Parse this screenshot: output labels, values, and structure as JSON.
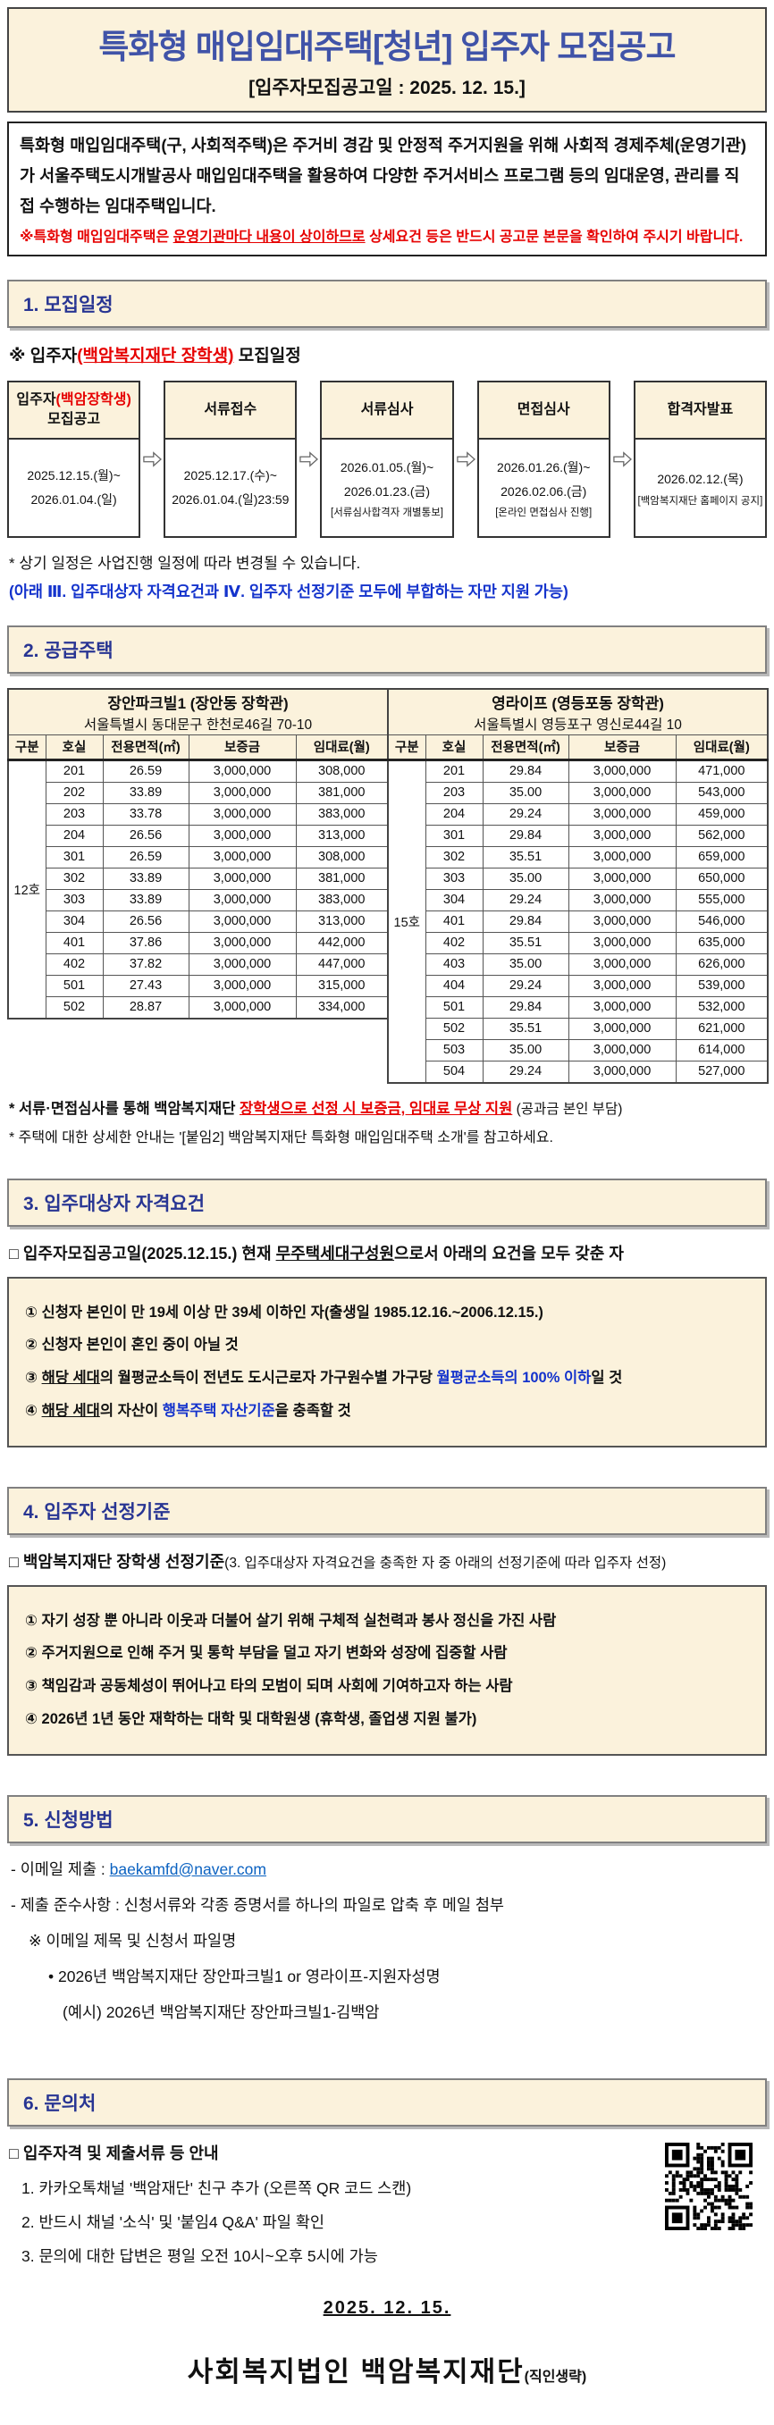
{
  "colors": {
    "cream": "#fbf2dc",
    "navy": "#283593",
    "title_blue": "#4053a8",
    "red": "#e60000",
    "accent_blue": "#1433cc",
    "link": "#0b62c1"
  },
  "header": {
    "title": "특화형 매입임대주택[청년] 입주자 모집공고",
    "subtitle": "[입주자모집공고일 : 2025. 12. 15.]"
  },
  "intro": {
    "body": "특화형 매입임대주택(구, 사회적주택)은 주거비 경감 및 안정적 주거지원을 위해 사회적 경제주체(운영기관)가 서울주택도시개발공사 매입임대주택을 활용하여 다양한 주거서비스 프로그램 등의 임대운영, 관리를 직접 수행하는 임대주택입니다.",
    "warn_segs": [
      {
        "t": "※특화형 매입임대주택은 ",
        "c": "red"
      },
      {
        "t": "운영기관마다 내용이 상이하므로",
        "c": "red",
        "u": true
      },
      {
        "t": " 상세요건 등은 반드시 공고문 본문을 확인하여 주시기 바랍니다.",
        "c": "red"
      }
    ]
  },
  "sections": {
    "s1": "1. 모집일정",
    "s2": "2. 공급주택",
    "s3": "3. 입주대상자 자격요건",
    "s4": "4. 입주자 선정기준",
    "s5": "5. 신청방법",
    "s6": "6. 문의처"
  },
  "schedule": {
    "note_segs": [
      {
        "t": "※ 입주자"
      },
      {
        "t": "(백암복지재단 장학생)",
        "c": "red",
        "u": true
      },
      {
        "t": " 모집일정"
      }
    ],
    "steps": [
      {
        "title_segs": [
          {
            "t": "입주자"
          },
          {
            "t": "(백암장학생)",
            "c": "red"
          }
        ],
        "title2": "모집공고",
        "dates": [
          "2025.12.15.(월)~",
          "2026.01.04.(일)"
        ],
        "extra": ""
      },
      {
        "title_segs": [
          {
            "t": "서류접수"
          }
        ],
        "title2": "",
        "dates": [
          "2025.12.17.(수)~",
          "2026.01.04.(일)23:59"
        ],
        "extra": ""
      },
      {
        "title_segs": [
          {
            "t": "서류심사"
          }
        ],
        "title2": "",
        "dates": [
          "2026.01.05.(월)~",
          "2026.01.23.(금)"
        ],
        "extra": "[서류심사합격자 개별통보]"
      },
      {
        "title_segs": [
          {
            "t": "면접심사"
          }
        ],
        "title2": "",
        "dates": [
          "2026.01.26.(월)~",
          "2026.02.06.(금)"
        ],
        "extra": "[온라인 면접심사 진행]"
      },
      {
        "title_segs": [
          {
            "t": "합격자발표"
          }
        ],
        "title2": "",
        "dates": [
          "2026.02.12.(목)"
        ],
        "extra": "[백암복지재단 홈페이지 공지]"
      }
    ],
    "footnote1": "* 상기 일정은 사업진행 일정에 따라 변경될 수 있습니다.",
    "footnote2": "(아래 Ⅲ. 입주대상자 자격요건과 Ⅳ. 입주자 선정기준 모두에 부합하는 자만 지원 가능)"
  },
  "housing": {
    "buildings": [
      {
        "name": "장안파크빌1 (장안동 장학관)",
        "address": "서울특별시 동대문구 한천로46길 70-10",
        "columns": [
          "구분",
          "호실",
          "전용면적(㎡)",
          "보증금",
          "임대료(월)"
        ],
        "group": "12호",
        "rows": [
          [
            "201",
            "26.59",
            "3,000,000",
            "308,000"
          ],
          [
            "202",
            "33.89",
            "3,000,000",
            "381,000"
          ],
          [
            "203",
            "33.78",
            "3,000,000",
            "383,000"
          ],
          [
            "204",
            "26.56",
            "3,000,000",
            "313,000"
          ],
          [
            "301",
            "26.59",
            "3,000,000",
            "308,000"
          ],
          [
            "302",
            "33.89",
            "3,000,000",
            "381,000"
          ],
          [
            "303",
            "33.89",
            "3,000,000",
            "383,000"
          ],
          [
            "304",
            "26.56",
            "3,000,000",
            "313,000"
          ],
          [
            "401",
            "37.86",
            "3,000,000",
            "442,000"
          ],
          [
            "402",
            "37.82",
            "3,000,000",
            "447,000"
          ],
          [
            "501",
            "27.43",
            "3,000,000",
            "315,000"
          ],
          [
            "502",
            "28.87",
            "3,000,000",
            "334,000"
          ]
        ]
      },
      {
        "name": "영라이프 (영등포동 장학관)",
        "address": "서울특별시 영등포구 영신로44길 10",
        "columns": [
          "구분",
          "호실",
          "전용면적(㎡)",
          "보증금",
          "임대료(월)"
        ],
        "group": "15호",
        "rows": [
          [
            "201",
            "29.84",
            "3,000,000",
            "471,000"
          ],
          [
            "203",
            "35.00",
            "3,000,000",
            "543,000"
          ],
          [
            "204",
            "29.24",
            "3,000,000",
            "459,000"
          ],
          [
            "301",
            "29.84",
            "3,000,000",
            "562,000"
          ],
          [
            "302",
            "35.51",
            "3,000,000",
            "659,000"
          ],
          [
            "303",
            "35.00",
            "3,000,000",
            "650,000"
          ],
          [
            "304",
            "29.24",
            "3,000,000",
            "555,000"
          ],
          [
            "401",
            "29.84",
            "3,000,000",
            "546,000"
          ],
          [
            "402",
            "35.51",
            "3,000,000",
            "635,000"
          ],
          [
            "403",
            "35.00",
            "3,000,000",
            "626,000"
          ],
          [
            "404",
            "29.24",
            "3,000,000",
            "539,000"
          ],
          [
            "501",
            "29.84",
            "3,000,000",
            "532,000"
          ],
          [
            "502",
            "35.51",
            "3,000,000",
            "621,000"
          ],
          [
            "503",
            "35.00",
            "3,000,000",
            "614,000"
          ],
          [
            "504",
            "29.24",
            "3,000,000",
            "527,000"
          ]
        ]
      }
    ],
    "note1_segs": [
      {
        "t": "* 서류·면접심사를 통해 백암복지재단 ",
        "b": true
      },
      {
        "t": "장학생으로 선정 시 보증금, 임대료 무상 지원",
        "c": "red",
        "u": true,
        "b": true
      }
    ],
    "note1_tail": " (공과금 본인 부담)",
    "note2": "* 주택에 대한 상세한 안내는 '[붙임2] 백암복지재단 특화형 매입임대주택 소개'를 참고하세요."
  },
  "eligibility": {
    "heading_segs": [
      {
        "t": "□ 입주자모집공고일(2025.12.15.) 현재 "
      },
      {
        "t": "무주택세대구성원",
        "u": true
      },
      {
        "t": "으로서 아래의 요건을 모두 갖춘 자"
      }
    ],
    "items": [
      [
        {
          "t": "① 신청자 본인이 만 19세 이상 만 39세 이하인 자(출생일 1985.12.16.~2006.12.15.)"
        }
      ],
      [
        {
          "t": "② 신청자 본인이 혼인 중이 아닐 것"
        }
      ],
      [
        {
          "t": "③ "
        },
        {
          "t": "해당 세대",
          "u": true
        },
        {
          "t": "의 월평균소득이 전년도 도시근로자 가구원수별 가구당 "
        },
        {
          "t": "월평균소득의 100% 이하",
          "c": "blue"
        },
        {
          "t": "일 것"
        }
      ],
      [
        {
          "t": "④ "
        },
        {
          "t": "해당 세대",
          "u": true
        },
        {
          "t": "의 자산이 "
        },
        {
          "t": "행복주택 자산기준",
          "c": "blue"
        },
        {
          "t": "을 충족할 것"
        }
      ]
    ]
  },
  "criteria": {
    "heading_bold": "□ 백암복지재단 장학생 선정기준",
    "heading_norm": "(3. 입주대상자 자격요건을 충족한 자 중 아래의 선정기준에 따라 입주자 선정)",
    "items": [
      [
        {
          "t": "① 자기 성장 뿐 아니라 이웃과 더불어 살기 위해 구체적 실천력과 봉사 정신을 가진 사람"
        }
      ],
      [
        {
          "t": "② 주거지원으로 인해 주거 및 통학 부담을 덜고 자기 변화와 성장에 집중할 사람"
        }
      ],
      [
        {
          "t": "③ 책임감과 공동체성이 뛰어나고 타의 모범이 되며 사회에 기여하고자 하는 사람"
        }
      ],
      [
        {
          "t": "④ 2026년 1년 동안 재학하는 대학 및 대학원생 (휴학생, 졸업생 지원 불가)"
        }
      ]
    ]
  },
  "method": {
    "line1_label": "- 이메일 제출 : ",
    "email": "baekamfd@naver.com",
    "line2": "- 제출 준수사항 : 신청서류와 각종 증명서를 하나의 파일로 압축 후 메일 첨부",
    "line3": "※ 이메일 제목 및 신청서 파일명",
    "line4": "• 2026년 백암복지재단 장안파크빌1 or 영라이프-지원자성명",
    "line5": "(예시) 2026년 백암복지재단 장안파크빌1-김백암"
  },
  "contact": {
    "heading": "□ 입주자격 및 제출서류 등 안내",
    "items": [
      "1. 카카오톡채널 '백암재단' 친구 추가 (오른쪽 QR 코드 스캔)",
      "2. 반드시 채널 '소식' 및 '붙임4 Q&A' 파일 확인",
      "3. 문의에 대한 답변은 평일 오전 10시~오후 5시에 가능"
    ],
    "qr_label": "kakao-channel-qr"
  },
  "footer": {
    "date": "2025. 12. 15.",
    "org": "사회복지법인 백암복지재단",
    "stamp": "(직인생략)"
  }
}
